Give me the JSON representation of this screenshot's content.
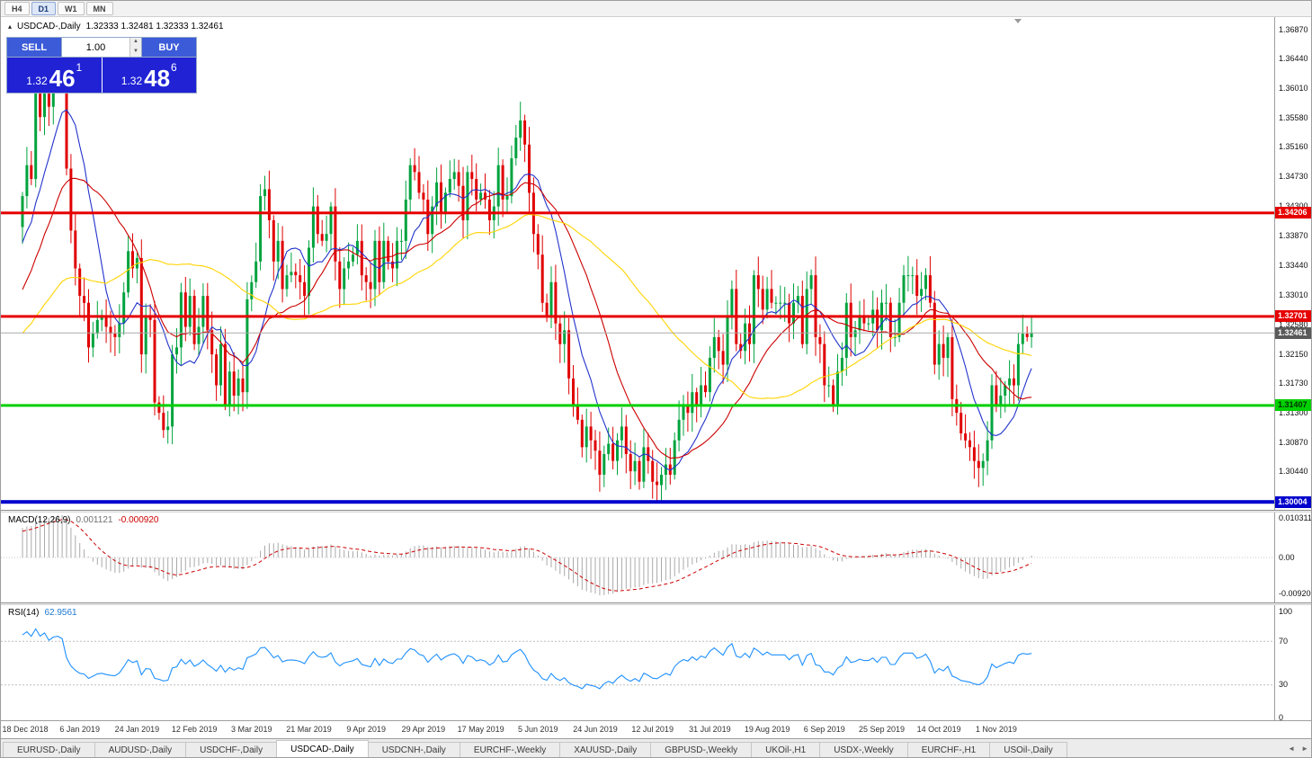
{
  "toolbar": {
    "timeframes": [
      {
        "label": "H4",
        "active": false
      },
      {
        "label": "D1",
        "active": true
      },
      {
        "label": "W1",
        "active": false
      },
      {
        "label": "MN",
        "active": false
      }
    ]
  },
  "chart_header": {
    "collapse_icon": "▴",
    "symbol_label": "USDCAD-,Daily",
    "ohlc_values": "1.32333 1.32481 1.32333 1.32461"
  },
  "one_click": {
    "sell_label": "SELL",
    "buy_label": "BUY",
    "volume": "1.00",
    "spin_up_icon": "▲",
    "spin_down_icon": "▼",
    "sell_price": {
      "small": "1.32",
      "big": "46",
      "sup": "1"
    },
    "buy_price": {
      "small": "1.32",
      "big": "48",
      "sup": "6"
    }
  },
  "price_axis": {
    "ticks": [
      "1.36870",
      "1.36440",
      "1.36010",
      "1.35580",
      "1.35160",
      "1.34730",
      "1.34300",
      "1.33870",
      "1.33440",
      "1.33010",
      "1.32580",
      "1.32150",
      "1.31730",
      "1.31300",
      "1.30870",
      "1.30440"
    ]
  },
  "levels": [
    {
      "price": 1.34206,
      "label": "1.34206",
      "color": "#e60000",
      "text_color": "#ffffff",
      "thickness": 3
    },
    {
      "price": 1.32701,
      "label": "1.32701",
      "color": "#e60000",
      "text_color": "#ffffff",
      "thickness": 3
    },
    {
      "price": 1.31407,
      "label": "1.31407",
      "color": "#00d000",
      "text_color": "#003300",
      "thickness": 3
    },
    {
      "price": 1.30004,
      "label": "1.30004",
      "color": "#0000cc",
      "text_color": "#ffffff",
      "thickness": 4
    }
  ],
  "current_price": {
    "value": 1.32461,
    "label": "1.32461",
    "tag_color": "#5a5a5a",
    "line_color": "#aaaaaa"
  },
  "macd": {
    "title": "MACD(12,26,9)",
    "main_value": "0.001121",
    "signal_value": "-0.000920",
    "fast": 12,
    "slow": 26,
    "signal_period": 9,
    "histogram_color": "#a9a9a9",
    "signal_color": "#cc0000",
    "axis": [
      {
        "label": "0.010311",
        "value": 0.010311
      },
      {
        "label": "0.00",
        "value": 0
      },
      {
        "label": "-0.009200",
        "value": -0.0092
      }
    ]
  },
  "rsi": {
    "title": "RSI(14)",
    "value": "62.9561",
    "period": 14,
    "color": "#1e90ff",
    "levels": [
      70,
      30
    ],
    "axis": [
      {
        "label": "100",
        "value": 100
      },
      {
        "label": "70",
        "value": 70
      },
      {
        "label": "30",
        "value": 30
      },
      {
        "label": "0",
        "value": 0
      }
    ]
  },
  "date_axis": {
    "labels": [
      "18 Dec 2018",
      "6 Jan 2019",
      "24 Jan 2019",
      "12 Feb 2019",
      "3 Mar 2019",
      "21 Mar 2019",
      "9 Apr 2019",
      "29 Apr 2019",
      "17 May 2019",
      "5 Jun 2019",
      "24 Jun 2019",
      "12 Jul 2019",
      "31 Jul 2019",
      "19 Aug 2019",
      "6 Sep 2019",
      "25 Sep 2019",
      "14 Oct 2019",
      "1 Nov 2019"
    ],
    "indices": [
      0,
      13,
      26,
      39,
      52,
      65,
      78,
      91,
      104,
      117,
      130,
      143,
      156,
      169,
      182,
      195,
      208,
      221
    ]
  },
  "tabs": {
    "items": [
      {
        "label": "EURUSD-,Daily",
        "active": false
      },
      {
        "label": "AUDUSD-,Daily",
        "active": false
      },
      {
        "label": "USDCHF-,Daily",
        "active": false
      },
      {
        "label": "USDCAD-,Daily",
        "active": true
      },
      {
        "label": "USDCNH-,Daily",
        "active": false
      },
      {
        "label": "EURCHF-,Weekly",
        "active": false
      },
      {
        "label": "XAUUSD-,Daily",
        "active": false
      },
      {
        "label": "GBPUSD-,Weekly",
        "active": false
      },
      {
        "label": "UKOil-,H1",
        "active": false
      },
      {
        "label": "USDX-,Weekly",
        "active": false
      },
      {
        "label": "EURCHF-,H1",
        "active": false
      },
      {
        "label": "USOil-,Daily",
        "active": false
      }
    ],
    "left_arrow": "◄",
    "right_arrow": "►"
  },
  "chart_data": {
    "type": "candlestick",
    "symbol": "USDCAD",
    "timeframe": "Daily",
    "up_color": "#00a33e",
    "down_color": "#e00000",
    "y_axis_range": [
      1.2989,
      1.3705
    ],
    "first_open": 1.34,
    "note": "closes approximate the plotted USDCAD daily series; open = previous close, wicks modeled",
    "pre_closes": [
      1.3055,
      1.308,
      1.3065,
      1.31,
      1.312,
      1.3095,
      1.314,
      1.316,
      1.313,
      1.3175,
      1.32,
      1.318,
      1.322,
      1.324,
      1.3215,
      1.326,
      1.327,
      1.3245,
      1.329,
      1.331,
      1.3285,
      1.333,
      1.334,
      1.332,
      1.336,
      1.338,
      1.3355,
      1.34,
      1.342,
      1.343
    ],
    "closes": [
      1.3445,
      1.349,
      1.347,
      1.36,
      1.356,
      1.362,
      1.3575,
      1.363,
      1.3645,
      1.363,
      1.3485,
      1.3395,
      1.334,
      1.33,
      1.329,
      1.3225,
      1.3245,
      1.3265,
      1.327,
      1.3255,
      1.3245,
      1.324,
      1.326,
      1.3305,
      1.3365,
      1.334,
      1.3355,
      1.3215,
      1.327,
      1.3265,
      1.3145,
      1.313,
      1.3105,
      1.311,
      1.3215,
      1.3225,
      1.3305,
      1.3255,
      1.33,
      1.323,
      1.3255,
      1.33,
      1.325,
      1.3215,
      1.317,
      1.323,
      1.314,
      1.319,
      1.3155,
      1.318,
      1.316,
      1.3295,
      1.332,
      1.335,
      1.3445,
      1.3455,
      1.341,
      1.335,
      1.338,
      1.331,
      1.333,
      1.3335,
      1.333,
      1.332,
      1.33,
      1.337,
      1.343,
      1.339,
      1.338,
      1.339,
      1.343,
      1.335,
      1.331,
      1.334,
      1.335,
      1.336,
      1.338,
      1.333,
      1.332,
      1.331,
      1.338,
      1.332,
      1.338,
      1.335,
      1.334,
      1.338,
      1.338,
      1.344,
      1.349,
      1.348,
      1.345,
      1.344,
      1.339,
      1.343,
      1.3465,
      1.342,
      1.345,
      1.347,
      1.348,
      1.346,
      1.341,
      1.348,
      1.347,
      1.344,
      1.345,
      1.344,
      1.341,
      1.343,
      1.349,
      1.344,
      1.3445,
      1.35,
      1.353,
      1.3555,
      1.352,
      1.345,
      1.339,
      1.336,
      1.329,
      1.327,
      1.332,
      1.326,
      1.323,
      1.325,
      1.318,
      1.314,
      1.312,
      1.308,
      1.311,
      1.309,
      1.3075,
      1.304,
      1.307,
      1.3085,
      1.306,
      1.309,
      1.311,
      1.307,
      1.3045,
      1.306,
      1.303,
      1.308,
      1.306,
      1.303,
      1.3025,
      1.304,
      1.3055,
      1.304,
      1.309,
      1.312,
      1.314,
      1.313,
      1.316,
      1.314,
      1.317,
      1.316,
      1.321,
      1.324,
      1.322,
      1.32,
      1.327,
      1.331,
      1.323,
      1.322,
      1.326,
      1.323,
      1.333,
      1.331,
      1.328,
      1.331,
      1.329,
      1.329,
      1.329,
      1.329,
      1.326,
      1.329,
      1.33,
      1.323,
      1.331,
      1.333,
      1.324,
      1.323,
      1.317,
      1.317,
      1.314,
      1.319,
      1.321,
      1.329,
      1.324,
      1.325,
      1.327,
      1.326,
      1.326,
      1.328,
      1.325,
      1.329,
      1.329,
      1.324,
      1.324,
      1.329,
      1.333,
      1.333,
      1.333,
      1.33,
      1.331,
      1.333,
      1.329,
      1.32,
      1.323,
      1.321,
      1.324,
      1.315,
      1.313,
      1.31,
      1.309,
      1.308,
      1.306,
      1.305,
      1.306,
      1.309,
      1.317,
      1.314,
      1.3155,
      1.317,
      1.318,
      1.317,
      1.323,
      1.3245,
      1.324,
      1.32461
    ],
    "moving_averages": [
      {
        "period": 10,
        "color": "#2233cc"
      },
      {
        "period": 21,
        "color": "#cc0000"
      },
      {
        "period": 50,
        "color": "#ffd400"
      }
    ]
  }
}
